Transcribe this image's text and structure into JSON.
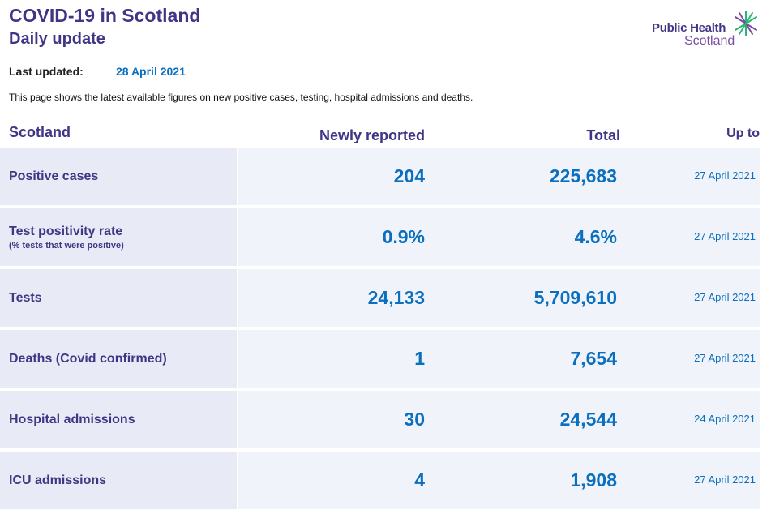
{
  "header": {
    "title": "COVID-19 in Scotland",
    "subtitle": "Daily update",
    "logo_line1": "Public Health",
    "logo_line2": "Scotland",
    "logo_icon": "star-burst-icon"
  },
  "updated": {
    "label": "Last updated:",
    "date": "28 April 2021"
  },
  "intro": "This page shows the latest available figures on new positive cases, testing, hospital admissions and deaths.",
  "table": {
    "headers": {
      "region": "Scotland",
      "new": "Newly reported",
      "total": "Total",
      "upto": "Up to"
    },
    "rows": [
      {
        "label": "Positive cases",
        "sublabel": "",
        "new": "204",
        "total": "225,683",
        "upto": "27 April 2021"
      },
      {
        "label": "Test positivity rate",
        "sublabel": "(% tests that were positive)",
        "new": "0.9%",
        "total": "4.6%",
        "upto": "27 April 2021"
      },
      {
        "label": "Tests",
        "sublabel": "",
        "new": "24,133",
        "total": "5,709,610",
        "upto": "27 April 2021"
      },
      {
        "label": "Deaths (Covid confirmed)",
        "sublabel": "",
        "new": "1",
        "total": "7,654",
        "upto": "27 April 2021"
      },
      {
        "label": "Hospital admissions",
        "sublabel": "",
        "new": "30",
        "total": "24,544",
        "upto": "24 April 2021"
      },
      {
        "label": "ICU admissions",
        "sublabel": "",
        "new": "4",
        "total": "1,908",
        "upto": "27 April 2021"
      }
    ]
  },
  "colors": {
    "heading": "#3f3685",
    "value": "#0a6fbf",
    "label_cell_bg": "#e8ebf5",
    "value_cell_bg": "#f1f3fa",
    "logo_green": "#2bb673",
    "logo_purple": "#7a4fa3"
  }
}
